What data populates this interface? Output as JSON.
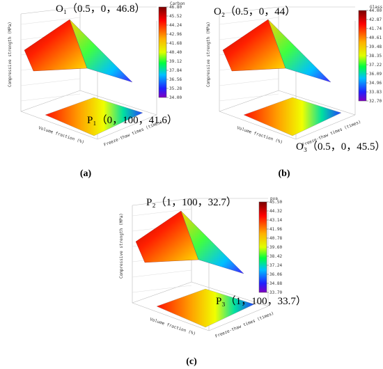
{
  "panels": [
    {
      "label": "(a)",
      "colorbar_title": "Carbon",
      "colorbar_ticks": [
        "46.80",
        "45.52",
        "44.24",
        "42.96",
        "41.68",
        "40.40",
        "39.12",
        "37.84",
        "36.56",
        "35.28",
        "34.00"
      ],
      "annotations": [
        "O₁（0.5，0，46.8）",
        "P₁（0，100，41.6）"
      ],
      "z_label": "Compressive strength (MPa)",
      "x_label": "Volume fraction (%)",
      "y_label": "Freeze-thaw times (times)"
    },
    {
      "label": "(b)",
      "colorbar_title": "Glass",
      "colorbar_ticks": [
        "44.00",
        "42.87",
        "41.74",
        "40.61",
        "39.48",
        "38.35",
        "37.22",
        "36.09",
        "34.96",
        "33.83",
        "32.70"
      ],
      "annotations": [
        "O₂（0.5，0，44）",
        "O₃（0.5，0，45.5）"
      ],
      "z_label": "Compressive strength (MPa)",
      "x_label": "Volume fraction (%)",
      "y_label": "Freeze-thaw times (times)"
    },
    {
      "label": "(c)",
      "colorbar_title": "pva",
      "colorbar_ticks": [
        "45.50",
        "44.32",
        "43.14",
        "41.96",
        "40.78",
        "39.60",
        "38.42",
        "37.24",
        "36.06",
        "34.88",
        "33.70"
      ],
      "annotations": [
        "P₂（1，100，32.7）",
        "P₃（1，100，33.7）"
      ],
      "z_label": "Compressive strength (MPa)",
      "x_label": "Volume fraction (%)",
      "y_label": "Freeze-thaw times (times)"
    }
  ]
}
